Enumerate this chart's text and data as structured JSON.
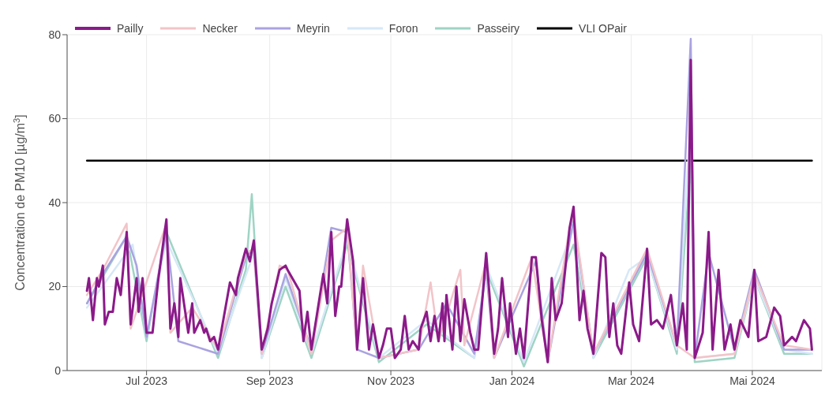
{
  "chart_data": {
    "type": "line",
    "ylabel": "Concentration de PM10 [µg/m$^{3}$]",
    "xlim": [
      "2023-05-22",
      "2024-06-05"
    ],
    "xticks": [
      {
        "value": "2023-07-01",
        "label": "Jul 2023"
      },
      {
        "value": "2023-09-01",
        "label": "Sep 2023"
      },
      {
        "value": "2023-11-01",
        "label": "Nov 2023"
      },
      {
        "value": "2024-01-01",
        "label": "Jan 2024"
      },
      {
        "value": "2024-03-01",
        "label": "Mar 2024"
      },
      {
        "value": "2024-05-01",
        "label": "Mai 2024"
      }
    ],
    "ylim": [
      0,
      80
    ],
    "yticks": [
      0,
      20,
      40,
      60,
      80
    ],
    "grid": true,
    "legend": "top",
    "marker": "none",
    "line_style": "solid",
    "series": [
      {
        "name": "Pailly",
        "color": "#8b1a89",
        "x": [
          "2023-06-01",
          "2023-06-02",
          "2023-06-04",
          "2023-06-06",
          "2023-06-07",
          "2023-06-09",
          "2023-06-10",
          "2023-06-12",
          "2023-06-14",
          "2023-06-16",
          "2023-06-18",
          "2023-06-21",
          "2023-06-23",
          "2023-06-26",
          "2023-06-27",
          "2023-06-29",
          "2023-07-01",
          "2023-07-04",
          "2023-07-07",
          "2023-07-11",
          "2023-07-13",
          "2023-07-15",
          "2023-07-17",
          "2023-07-18",
          "2023-07-22",
          "2023-07-24",
          "2023-07-25",
          "2023-07-28",
          "2023-07-30",
          "2023-07-31",
          "2023-08-02",
          "2023-08-04",
          "2023-08-06",
          "2023-08-12",
          "2023-08-15",
          "2023-08-16",
          "2023-08-20",
          "2023-08-22",
          "2023-08-24",
          "2023-08-28",
          "2023-08-31",
          "2023-09-02",
          "2023-09-06",
          "2023-09-09",
          "2023-09-10",
          "2023-09-16",
          "2023-09-18",
          "2023-09-20",
          "2023-09-22",
          "2023-09-28",
          "2023-09-30",
          "2023-10-02",
          "2023-10-04",
          "2023-10-06",
          "2023-10-07",
          "2023-10-10",
          "2023-10-13",
          "2023-10-15",
          "2023-10-18",
          "2023-10-21",
          "2023-10-23",
          "2023-10-26",
          "2023-10-28",
          "2023-10-30",
          "2023-11-01",
          "2023-11-03",
          "2023-11-06",
          "2023-11-08",
          "2023-11-10",
          "2023-11-12",
          "2023-11-15",
          "2023-11-16",
          "2023-11-19",
          "2023-11-21",
          "2023-11-23",
          "2023-11-25",
          "2023-11-27",
          "2023-11-28",
          "2023-11-29",
          "2023-12-02",
          "2023-12-04",
          "2023-12-06",
          "2023-12-08",
          "2023-12-11",
          "2023-12-13",
          "2023-12-15",
          "2023-12-19",
          "2023-12-23",
          "2023-12-25",
          "2023-12-27",
          "2023-12-30",
          "2023-12-31",
          "2024-01-03",
          "2024-01-05",
          "2024-01-07",
          "2024-01-11",
          "2024-01-13",
          "2024-01-16",
          "2024-01-19",
          "2024-01-21",
          "2024-01-23",
          "2024-01-26",
          "2024-01-30",
          "2024-02-01",
          "2024-02-04",
          "2024-02-06",
          "2024-02-08",
          "2024-02-11",
          "2024-02-15",
          "2024-02-17",
          "2024-02-19",
          "2024-02-21",
          "2024-02-23",
          "2024-02-25",
          "2024-02-29",
          "2024-03-02",
          "2024-03-05",
          "2024-03-09",
          "2024-03-11",
          "2024-03-14",
          "2024-03-17",
          "2024-03-18",
          "2024-03-21",
          "2024-03-24",
          "2024-03-27",
          "2024-03-29",
          "2024-03-31",
          "2024-04-02",
          "2024-04-06",
          "2024-04-09",
          "2024-04-11",
          "2024-04-14",
          "2024-04-17",
          "2024-04-20",
          "2024-04-22",
          "2024-04-25",
          "2024-04-29",
          "2024-05-02",
          "2024-05-04",
          "2024-05-08",
          "2024-05-12",
          "2024-05-15",
          "2024-05-17",
          "2024-05-21",
          "2024-05-23",
          "2024-05-27",
          "2024-05-30",
          "2024-05-31"
        ],
        "values": [
          19,
          22,
          12,
          22,
          20,
          25,
          11,
          14,
          14,
          22,
          18,
          33,
          11,
          22,
          14,
          22,
          9,
          9,
          22,
          36,
          10,
          16,
          8,
          22,
          9,
          16,
          9,
          12,
          9,
          10,
          7,
          8,
          5,
          21,
          18,
          22,
          29,
          26,
          31,
          5,
          10,
          16,
          24,
          25,
          24,
          19,
          7,
          14,
          5,
          23,
          16,
          33,
          13,
          20,
          20,
          36,
          26,
          5,
          22,
          5,
          11,
          3,
          6,
          10,
          10,
          3,
          5,
          13,
          5,
          7,
          5,
          10,
          14,
          7,
          13,
          7,
          16,
          7,
          18,
          5,
          20,
          7,
          17,
          9,
          5,
          5,
          28,
          4,
          10,
          22,
          8,
          16,
          4,
          10,
          3,
          27,
          27,
          12,
          2,
          22,
          12,
          16,
          34,
          39,
          12,
          19,
          10,
          4,
          28,
          27,
          8,
          16,
          6,
          4,
          21,
          11,
          7,
          29,
          11,
          12,
          10,
          12,
          18,
          6,
          16,
          5,
          74,
          3,
          9,
          33,
          5,
          24,
          5,
          11,
          5,
          12,
          8,
          24,
          7,
          8,
          15,
          13,
          6,
          8,
          7,
          12,
          10,
          5
        ]
      },
      {
        "name": "Necker",
        "color": "#f2c4c8",
        "x": [
          "2023-06-01",
          "2023-06-09",
          "2023-06-21",
          "2023-06-23",
          "2023-07-11",
          "2023-07-13",
          "2023-07-24",
          "2023-08-06",
          "2023-08-20",
          "2023-08-24",
          "2023-08-28",
          "2023-09-06",
          "2023-09-10",
          "2023-09-22",
          "2023-10-02",
          "2023-10-10",
          "2023-10-15",
          "2023-10-18",
          "2023-10-26",
          "2023-11-15",
          "2023-11-21",
          "2023-11-25",
          "2023-12-06",
          "2023-12-08",
          "2023-12-19",
          "2023-12-23",
          "2024-01-11",
          "2024-01-19",
          "2024-01-30",
          "2024-02-01",
          "2024-02-11",
          "2024-03-09",
          "2024-03-24",
          "2024-04-02",
          "2024-04-22",
          "2024-05-02",
          "2024-05-17",
          "2024-05-31"
        ],
        "values": [
          18,
          24,
          35,
          10,
          35,
          9,
          15,
          5,
          28,
          29,
          4,
          25,
          24,
          4,
          31,
          34,
          5,
          25,
          3,
          5,
          21,
          7,
          24,
          6,
          26,
          3,
          27,
          2,
          34,
          37,
          4,
          29,
          6,
          3,
          4,
          23,
          6,
          5
        ]
      },
      {
        "name": "Meyrin",
        "color": "#a9a3e0",
        "x": [
          "2023-06-01",
          "2023-06-09",
          "2023-06-21",
          "2023-06-26",
          "2023-07-01",
          "2023-07-11",
          "2023-07-17",
          "2023-08-06",
          "2023-08-20",
          "2023-08-24",
          "2023-08-28",
          "2023-09-09",
          "2023-09-22",
          "2023-10-02",
          "2023-10-10",
          "2023-10-15",
          "2023-10-26",
          "2023-11-15",
          "2023-11-29",
          "2023-12-13",
          "2023-12-19",
          "2023-12-23",
          "2024-01-13",
          "2024-01-19",
          "2024-02-01",
          "2024-02-11",
          "2024-03-09",
          "2024-03-24",
          "2024-03-31",
          "2024-04-02",
          "2024-04-09",
          "2024-04-22",
          "2024-05-02",
          "2024-05-17",
          "2024-05-31"
        ],
        "values": [
          16,
          23,
          32,
          25,
          8,
          33,
          7,
          4,
          27,
          29,
          4,
          23,
          5,
          34,
          33,
          5,
          3,
          5,
          16,
          4,
          24,
          3,
          26,
          2,
          36,
          4,
          28,
          6,
          79,
          3,
          28,
          5,
          24,
          5,
          5
        ]
      },
      {
        "name": "Foron",
        "color": "#d6e8f7",
        "x": [
          "2023-06-01",
          "2023-06-24",
          "2023-07-01",
          "2023-07-11",
          "2023-08-06",
          "2023-08-24",
          "2023-08-28",
          "2023-09-09",
          "2023-09-22",
          "2023-10-10",
          "2023-10-26",
          "2023-11-19",
          "2023-12-13",
          "2023-12-19",
          "2024-01-07",
          "2024-02-01",
          "2024-02-11",
          "2024-02-29",
          "2024-03-09",
          "2024-03-24",
          "2024-03-31",
          "2024-04-02",
          "2024-04-22",
          "2024-05-02",
          "2024-05-17",
          "2024-05-31"
        ],
        "values": [
          15,
          30,
          8,
          31,
          4,
          28,
          3,
          22,
          4,
          31,
          3,
          12,
          3,
          25,
          2,
          34,
          3,
          24,
          27,
          5,
          60,
          3,
          4,
          22,
          5,
          4
        ]
      },
      {
        "name": "Passeiry",
        "color": "#9fd4c4",
        "x": [
          "2023-06-01",
          "2023-06-21",
          "2023-07-01",
          "2023-07-11",
          "2023-08-06",
          "2023-08-20",
          "2023-08-23",
          "2023-08-28",
          "2023-09-09",
          "2023-09-22",
          "2023-10-10",
          "2023-10-26",
          "2023-11-19",
          "2023-12-13",
          "2023-12-19",
          "2024-01-07",
          "2024-02-01",
          "2024-02-11",
          "2024-03-09",
          "2024-03-24",
          "2024-03-31",
          "2024-04-02",
          "2024-04-22",
          "2024-05-02",
          "2024-05-17",
          "2024-05-31"
        ],
        "values": [
          16,
          32,
          7,
          33,
          3,
          24,
          42,
          3,
          20,
          3,
          30,
          2,
          11,
          3,
          24,
          1,
          30,
          3,
          27,
          4,
          50,
          2,
          3,
          22,
          4,
          4
        ]
      },
      {
        "name": "VLI OPair",
        "color": "#000000",
        "x": [
          "2023-06-01",
          "2024-05-31"
        ],
        "values": [
          50,
          50
        ]
      }
    ]
  }
}
